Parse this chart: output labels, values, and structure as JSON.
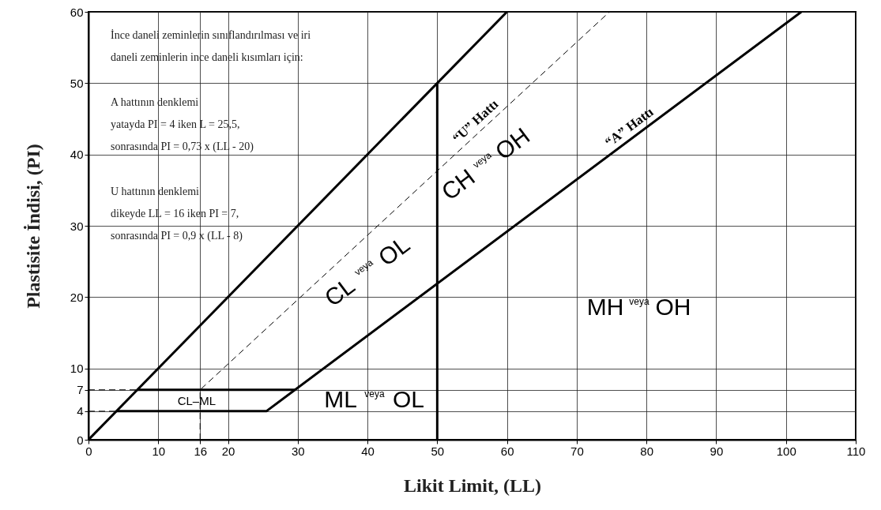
{
  "chart_data": {
    "type": "line",
    "xlabel": "Likit Limit, (LL)",
    "ylabel": "Plastisite İndisi, (PI)",
    "xlim": [
      0,
      110
    ],
    "xticks": [
      0,
      10,
      16,
      20,
      30,
      40,
      50,
      60,
      70,
      80,
      90,
      100,
      110
    ],
    "ylim": [
      0,
      60
    ],
    "yticks": [
      0,
      4,
      7,
      10,
      20,
      30,
      40,
      50,
      60
    ],
    "grid": true,
    "marker": "none",
    "series": [
      {
        "color": "#000000",
        "line_style": "solid",
        "x": [
          0,
          60
        ],
        "values": [
          0,
          60
        ]
      },
      {
        "name": "“U” Hattı",
        "color": "#000000",
        "line_style": "dashed",
        "x": [
          16,
          16,
          74.7
        ],
        "values": [
          0,
          7,
          60
        ]
      },
      {
        "name": "“A” Hattı",
        "color": "#000000",
        "line_style": "solid",
        "x": [
          4,
          25.5,
          102.2
        ],
        "values": [
          4,
          4,
          60
        ]
      },
      {
        "color": "#000000",
        "line_style": "solid",
        "x": [
          50,
          50
        ],
        "values": [
          0,
          50
        ]
      },
      {
        "color": "#000000",
        "line_style": "solid",
        "x": [
          7,
          29.6
        ],
        "values": [
          7,
          7
        ]
      },
      {
        "color": "#000000",
        "line_style": "dashed",
        "x": [
          0,
          7
        ],
        "values": [
          7,
          7
        ]
      },
      {
        "color": "#000000",
        "line_style": "dashed",
        "x": [
          0,
          4
        ],
        "values": [
          4,
          4
        ]
      }
    ],
    "annotations": [
      "CL–ML",
      "ML veya OL",
      "CL veya OL",
      "CH veya OH",
      "MH veya OH",
      "İnce daneli zeminlerin sınıflandırılması ve iri",
      "daneli zeminlerin ince daneli kısımları için:",
      "A hattının denklemi",
      "yatayda PI = 4 iken L = 25,5,",
      "sonrasında PI = 0,73 x (LL - 20)",
      "U hattının denklemi",
      "dikeyde LL = 16 iken PI = 7,",
      "sonrasında PI = 0,9 x (LL - 8)"
    ]
  }
}
